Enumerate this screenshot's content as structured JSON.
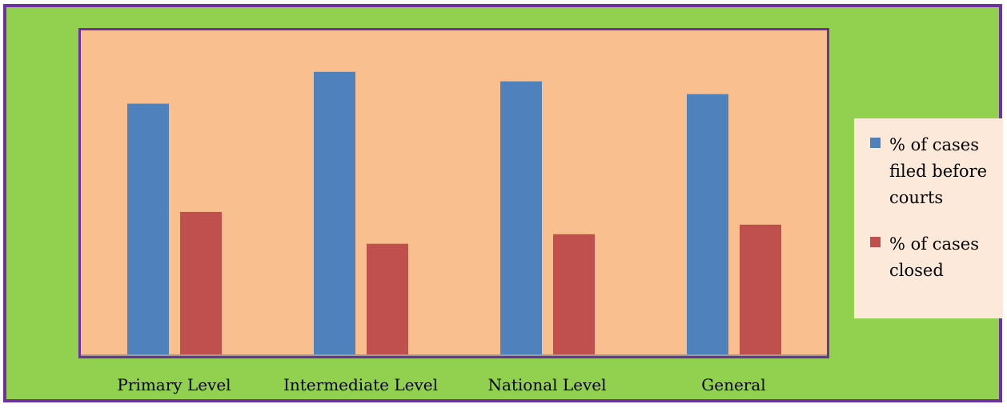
{
  "chart_data": {
    "type": "bar",
    "categories": [
      "Primary Level",
      "Intermediate Level",
      "National Level",
      "General"
    ],
    "series": [
      {
        "name": "% of cases filed before courts",
        "values": [
          79,
          89,
          86,
          82
        ],
        "color": "#4f81bd"
      },
      {
        "name": "% of cases closed",
        "values": [
          45,
          35,
          38,
          41
        ],
        "color": "#c0504d"
      }
    ],
    "ylim": [
      0,
      100
    ],
    "grid": false,
    "legend_position": "right",
    "colors": {
      "background": "#92d050",
      "border": "#7030a0",
      "plot_area": "#f9bf8f",
      "legend_background": "#fde9d9"
    }
  }
}
